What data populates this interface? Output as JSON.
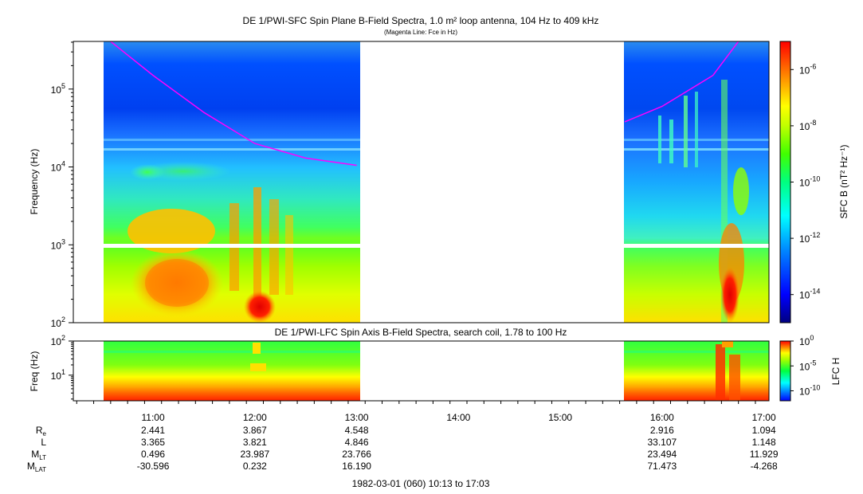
{
  "chart_data": [
    {
      "type": "heatmap",
      "title": "DE 1/PWI-SFC  Spin Plane B-Field Spectra, 1.0 m² loop antenna, 104 Hz to 409 kHz",
      "subtitle": "(Magenta Line: Fce in Hz)",
      "ylabel": "Frequency (Hz)",
      "y_scale": "log",
      "ylim": [
        100,
        409000
      ],
      "y_ticks": [
        {
          "value": 100,
          "mantissa": "10",
          "exp": "2"
        },
        {
          "value": 1000,
          "mantissa": "10",
          "exp": "3"
        },
        {
          "value": 10000,
          "mantissa": "10",
          "exp": "4"
        },
        {
          "value": 100000,
          "mantissa": "10",
          "exp": "5"
        }
      ],
      "xlim": [
        "10:13",
        "17:03"
      ],
      "data_intervals": [
        [
          "10:30",
          "13:03"
        ],
        [
          "15:38",
          "17:03"
        ]
      ],
      "colorbar": {
        "label": "SFC B (nT² Hz⁻¹)",
        "scale": "log",
        "range": [
          1e-15,
          1e-05
        ],
        "ticks": [
          {
            "mantissa": "10",
            "exp": "-6"
          },
          {
            "mantissa": "10",
            "exp": "-8"
          },
          {
            "mantissa": "10",
            "exp": "-10"
          },
          {
            "mantissa": "10",
            "exp": "-12"
          },
          {
            "mantissa": "10",
            "exp": "-14"
          }
        ]
      },
      "fce_line": {
        "color": "#ff00ff",
        "segments": [
          [
            [
              "10:35",
              409000
            ],
            [
              "11:00",
              150000
            ],
            [
              "11:30",
              50000
            ],
            [
              "12:00",
              20000
            ],
            [
              "12:30",
              13000
            ],
            [
              "13:00",
              10500
            ]
          ],
          [
            [
              "15:38",
              38000
            ],
            [
              "16:00",
              60000
            ],
            [
              "16:30",
              150000
            ],
            [
              "16:45",
              409000
            ]
          ]
        ]
      }
    },
    {
      "type": "heatmap",
      "title": "DE 1/PWI-LFC  Spin Axis B-Field Spectra, search coil, 1.78 to 100 Hz",
      "ylabel": "Freq (Hz)",
      "y_scale": "log",
      "ylim": [
        1.78,
        100
      ],
      "y_ticks": [
        {
          "value": 10,
          "mantissa": "10",
          "exp": "1"
        },
        {
          "value": 100,
          "mantissa": "10",
          "exp": "2"
        }
      ],
      "colorbar": {
        "label": "LFC H",
        "scale": "log",
        "range": [
          1e-12,
          1
        ],
        "ticks": [
          {
            "mantissa": "10",
            "exp": "0"
          },
          {
            "mantissa": "10",
            "exp": "-5"
          },
          {
            "mantissa": "10",
            "exp": "-10"
          }
        ]
      },
      "x_ticks": [
        "11:00",
        "12:00",
        "13:00",
        "14:00",
        "15:00",
        "16:00",
        "17:00"
      ]
    }
  ],
  "ephemeris": {
    "rows": [
      {
        "label": "R",
        "sub": "e",
        "values": [
          "2.441",
          "3.867",
          "4.548",
          "",
          "",
          "2.916",
          "1.094"
        ]
      },
      {
        "label": "L",
        "sub": "",
        "values": [
          "3.365",
          "3.821",
          "4.846",
          "",
          "",
          "33.107",
          "1.148"
        ]
      },
      {
        "label": "M",
        "sub": "LT",
        "values": [
          "0.496",
          "23.987",
          "23.766",
          "",
          "",
          "23.494",
          "11.929"
        ]
      },
      {
        "label": "M",
        "sub": "LAT",
        "values": [
          "-30.596",
          "0.232",
          "16.190",
          "",
          "",
          "71.473",
          "-4.268"
        ]
      }
    ]
  },
  "footer": "1982-03-01 (060) 10:13 to 17:03"
}
